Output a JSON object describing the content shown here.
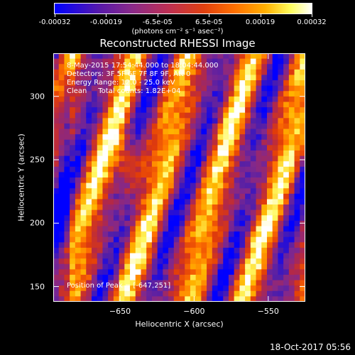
{
  "colorbar": {
    "tick_labels": [
      "-0.00032",
      "-0.00019",
      "-6.5e-05",
      "6.5e-05",
      "0.00019",
      "0.00032"
    ],
    "unit_label": "(photons cm⁻² s⁻¹ asec⁻²)",
    "range": [
      -0.00032,
      0.00032
    ]
  },
  "chart_data": {
    "type": "heatmap",
    "title": "Reconstructed RHESSI Image",
    "xlabel": "Heliocentric X (arcsec)",
    "ylabel": "Heliocentric Y (arcsec)",
    "xlim": [
      -695,
      -525
    ],
    "ylim": [
      138,
      334
    ],
    "x_ticks": [
      -650,
      -600,
      -550
    ],
    "x_tick_labels": [
      "−650",
      "−600",
      "−550"
    ],
    "y_ticks": [
      150,
      200,
      250,
      300
    ],
    "y_tick_labels": [
      "150",
      "200",
      "250",
      "300"
    ],
    "annotations": [
      "8-May-2015 17:54:44.000 to 18:04:44.000",
      "Detectors: 3F 5F 6F 7F 8F 9F, Att 0",
      "Energy Range: 12.0 - 25.0 keV",
      "Clean     Total counts: 1.82E+04"
    ],
    "peak_label": "Position of Peak = [-647,251]",
    "peak": [
      -647,
      251
    ]
  },
  "footer": {
    "timestamp": "18-Oct-2017 05:56"
  }
}
